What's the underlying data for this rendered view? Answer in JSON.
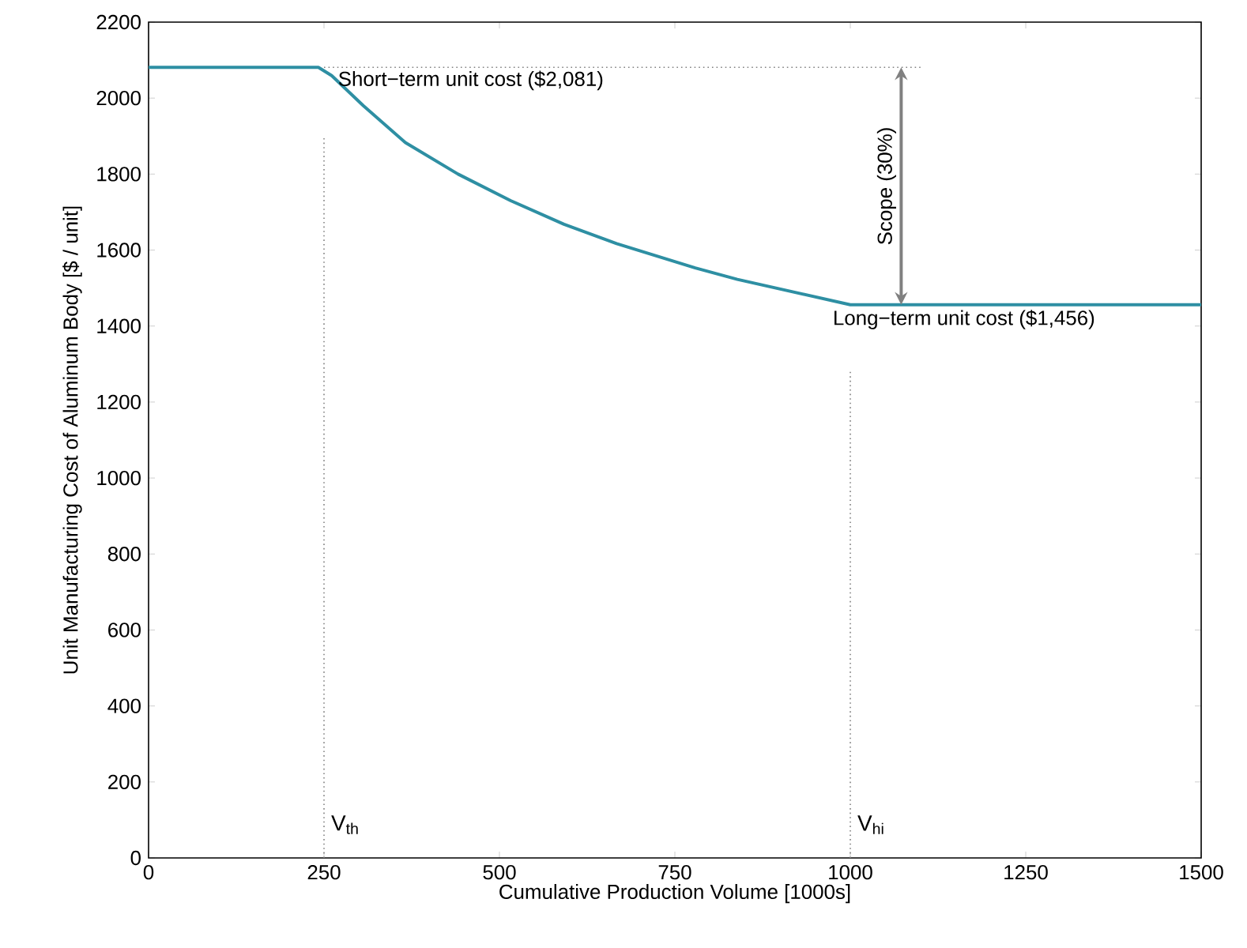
{
  "chart_data": {
    "type": "line",
    "xlabel": "Cumulative Production Volume [1000s]",
    "ylabel": "Unit Manufacturing Cost of Aluminum Body [$ / unit]",
    "x": [
      0,
      242,
      261,
      306,
      366,
      441,
      516,
      592,
      667,
      779,
      839,
      1000,
      1500
    ],
    "series": [
      {
        "color": "#2e8fa3",
        "values": [
          2081,
          2081,
          2059,
          1980,
          1883,
          1800,
          1730,
          1668,
          1617,
          1553,
          1523,
          1456,
          1456
        ]
      }
    ],
    "xlim": [
      0,
      1500
    ],
    "xticks": [
      0,
      250,
      500,
      750,
      1000,
      1250,
      1500
    ],
    "ylim": [
      0,
      2200
    ],
    "yticks": [
      0,
      200,
      400,
      600,
      800,
      1000,
      1200,
      1400,
      1600,
      1800,
      2000,
      2200
    ],
    "grid": false,
    "marker": "none",
    "line_style": "solid",
    "ref_lines": [
      {
        "axis": "x",
        "value": 250,
        "label": "V$_{th}$",
        "color": "#808080",
        "line_style": "dotted"
      },
      {
        "axis": "x",
        "value": 1000,
        "label": "V$_{hi}$",
        "color": "#808080",
        "line_style": "dotted"
      },
      {
        "axis": "y",
        "value": 2081,
        "label": "Short−term unit cost ($2,081)",
        "color": "#808080",
        "line_style": "dotted"
      }
    ],
    "annotations": [
      {
        "text": "Long−term unit cost ($1,456)",
        "x": 1162,
        "y": 1456
      },
      "Scope (30%)"
    ]
  }
}
